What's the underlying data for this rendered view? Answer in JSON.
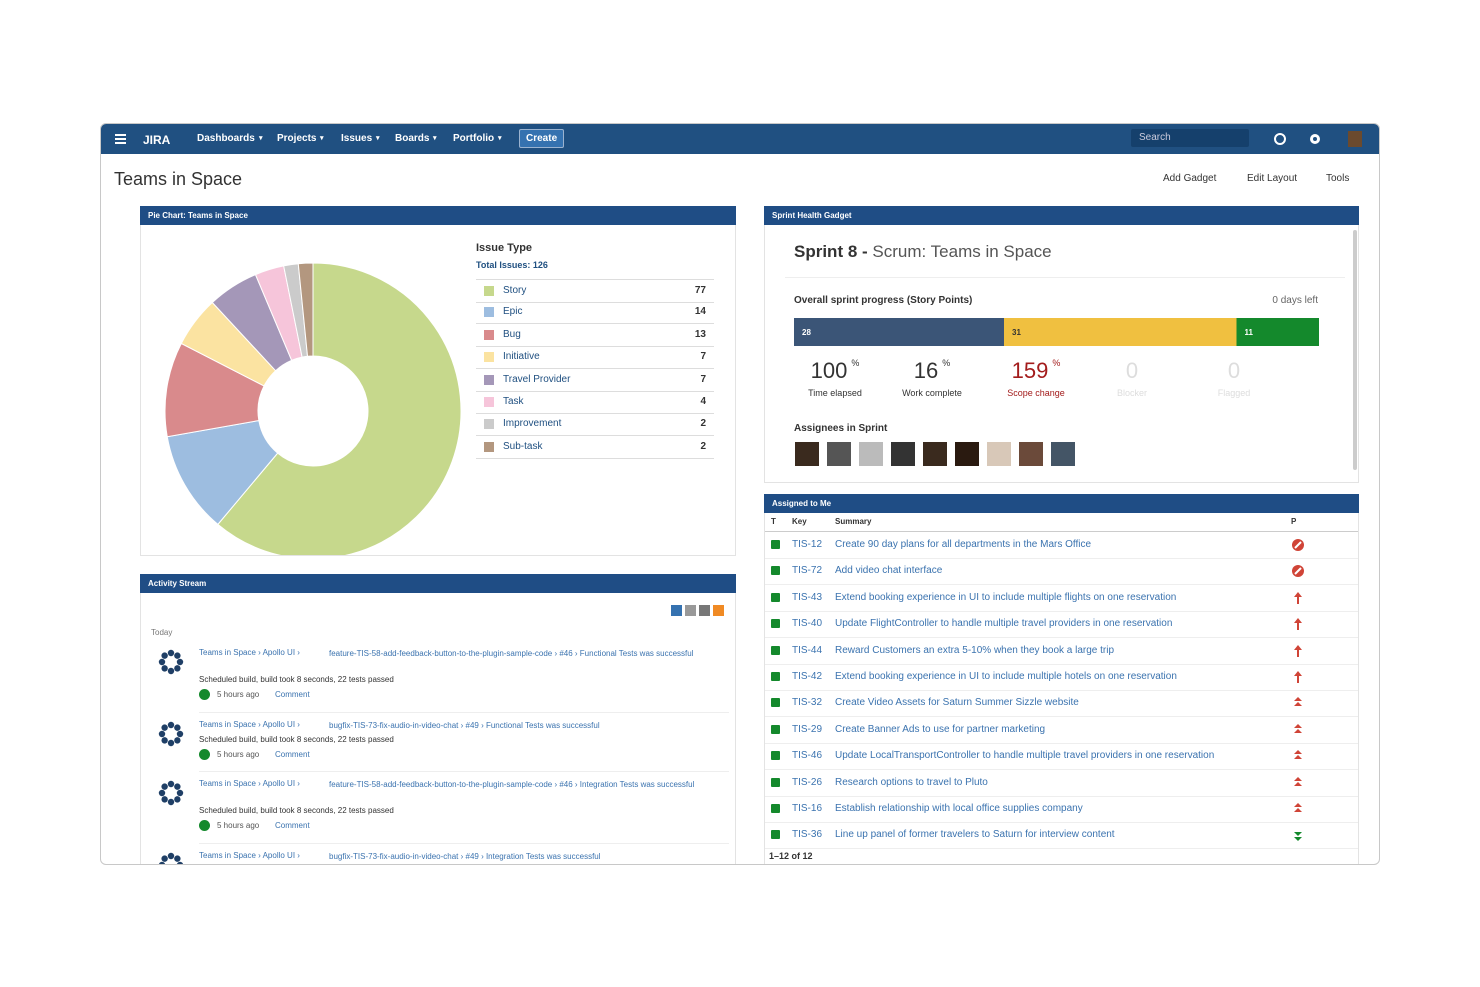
{
  "nav": {
    "logo": "JIRA",
    "items": [
      "Dashboards",
      "Projects",
      "Issues",
      "Boards",
      "Portfolio"
    ],
    "create": "Create",
    "search": "Search"
  },
  "page": {
    "title": "Teams in Space",
    "actions": [
      "Add Gadget",
      "Edit Layout",
      "Tools"
    ]
  },
  "chart_data": {
    "type": "pie",
    "title": "Pie Chart: Teams in Space",
    "legend_title": "Issue Type",
    "subtitle": "Total Issues: 126",
    "categories": [
      "Story",
      "Epic",
      "Bug",
      "Initiative",
      "Travel Provider",
      "Task",
      "Improvement",
      "Sub-task"
    ],
    "values": [
      77,
      14,
      13,
      7,
      7,
      4,
      2,
      2
    ],
    "colors": [
      "#c6d88c",
      "#9dbde0",
      "#d98a8c",
      "#fbe3a1",
      "#a497b8",
      "#f6c5da",
      "#cbcbcb",
      "#b3977f"
    ]
  },
  "sprint": {
    "title": "Sprint Health Gadget",
    "name": "Sprint 8 -",
    "board": "Scrum: Teams in Space",
    "progress_label": "Overall sprint progress (Story Points)",
    "days_left": "0 days left",
    "segments": [
      28,
      31,
      11
    ],
    "segment_colors": [
      "#3b5577",
      "#f0c040",
      "#14892c"
    ],
    "stats": [
      {
        "value": 100,
        "unit": "%",
        "label": "Time elapsed"
      },
      {
        "value": 16,
        "unit": "%",
        "label": "Work complete"
      },
      {
        "value": 159,
        "unit": "%",
        "label": "Scope change"
      },
      {
        "value": 0,
        "label": "Blocker"
      },
      {
        "value": 0,
        "label": "Flagged"
      }
    ],
    "assignees_label": "Assignees in Sprint"
  },
  "assigned": {
    "title": "Assigned to Me",
    "headers": [
      "T",
      "Key",
      "Summary",
      "P"
    ],
    "rows": [
      {
        "key": "TIS-12",
        "summary": "Create 90 day plans for all departments in the Mars Office"
      },
      {
        "key": "TIS-72",
        "summary": "Add video chat interface"
      },
      {
        "key": "TIS-43",
        "summary": "Extend booking experience in UI to include multiple flights on one reservation"
      },
      {
        "key": "TIS-40",
        "summary": "Update FlightController to handle multiple travel providers in one reservation"
      },
      {
        "key": "TIS-44",
        "summary": "Reward Customers an extra 5-10% when they book a large trip"
      },
      {
        "key": "TIS-42",
        "summary": "Extend booking experience in UI to include multiple hotels on one reservation"
      },
      {
        "key": "TIS-32",
        "summary": "Create Video Assets for Saturn Summer Sizzle website"
      },
      {
        "key": "TIS-29",
        "summary": "Create Banner Ads to use for partner marketing"
      },
      {
        "key": "TIS-46",
        "summary": "Update LocalTransportController to handle multiple travel providers in one reservation"
      },
      {
        "key": "TIS-26",
        "summary": "Research options to travel to Pluto"
      },
      {
        "key": "TIS-16",
        "summary": "Establish relationship with local office supplies company"
      },
      {
        "key": "TIS-36",
        "summary": "Line up panel of former travelers to Saturn for interview content"
      }
    ],
    "footer": "1–12 of 12"
  },
  "activity": {
    "title": "Activity Stream",
    "day": "Today",
    "entries": [
      {
        "project": "Teams in Space › Apollo UI ›",
        "link": "feature-TIS-58-add-feedback-button-to-the-plugin-sample-code › #46 › Functional Tests was successful",
        "detail": "Scheduled build, build took 8 seconds, 22 tests passed",
        "time": "5 hours ago",
        "comment": "Comment"
      },
      {
        "project": "Teams in Space › Apollo UI ›",
        "link": "bugfix-TIS-73-fix-audio-in-video-chat › #49 › Functional Tests was successful",
        "detail": "Scheduled build, build took 8 seconds, 22 tests passed",
        "time": "5 hours ago",
        "comment": "Comment"
      },
      {
        "project": "Teams in Space › Apollo UI ›",
        "link": "feature-TIS-58-add-feedback-button-to-the-plugin-sample-code › #46 › Integration Tests was successful",
        "detail": "Scheduled build, build took 8 seconds, 22 tests passed",
        "time": "5 hours ago",
        "comment": "Comment"
      },
      {
        "project": "Teams in Space › Apollo UI ›",
        "link": "bugfix-TIS-73-fix-audio-in-video-chat › #49 › Integration Tests was successful"
      }
    ]
  }
}
